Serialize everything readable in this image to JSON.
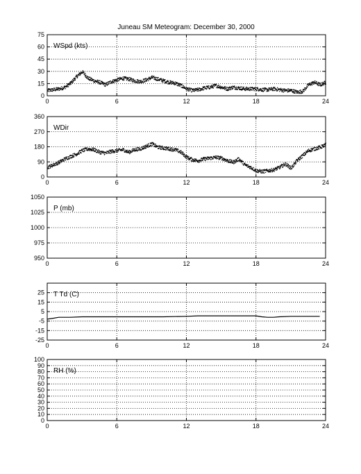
{
  "figure": {
    "title": "Juneau SM Meteogram:   December 30, 2000"
  },
  "chart_data": [
    {
      "type": "scatter",
      "label": "WSpd (kts)",
      "xlim": [
        0,
        24
      ],
      "ylim": [
        0,
        75
      ],
      "xticks": [
        0,
        6,
        12,
        18,
        24
      ],
      "yticks": [
        0,
        15,
        30,
        45,
        60,
        75
      ],
      "grid": true,
      "series": [
        {
          "values": [
            [
              0,
              7
            ],
            [
              0.5,
              8
            ],
            [
              1,
              9
            ],
            [
              1.5,
              11
            ],
            [
              2,
              16
            ],
            [
              2.5,
              24
            ],
            [
              3,
              30
            ],
            [
              3.5,
              22
            ],
            [
              4,
              19
            ],
            [
              4.5,
              17
            ],
            [
              5,
              14
            ],
            [
              5.5,
              18
            ],
            [
              6,
              20
            ],
            [
              6.5,
              22
            ],
            [
              7,
              21
            ],
            [
              7.5,
              19
            ],
            [
              8,
              18
            ],
            [
              8.5,
              20
            ],
            [
              9,
              23
            ],
            [
              9.5,
              21
            ],
            [
              10,
              19
            ],
            [
              10.5,
              17
            ],
            [
              11,
              16
            ],
            [
              11.5,
              13
            ],
            [
              12,
              9
            ],
            [
              12.5,
              7
            ],
            [
              13,
              8
            ],
            [
              13.5,
              10
            ],
            [
              14,
              11
            ],
            [
              14.5,
              13
            ],
            [
              15,
              11
            ],
            [
              15.5,
              9
            ],
            [
              16,
              11
            ],
            [
              16.5,
              10
            ],
            [
              17,
              9
            ],
            [
              17.5,
              9
            ],
            [
              18,
              9
            ],
            [
              18.5,
              8
            ],
            [
              19,
              8
            ],
            [
              19.5,
              9
            ],
            [
              20,
              8
            ],
            [
              20.5,
              7
            ],
            [
              21,
              7
            ],
            [
              21.5,
              5
            ],
            [
              22,
              6
            ],
            [
              22.5,
              14
            ],
            [
              23,
              17
            ],
            [
              23.5,
              14
            ],
            [
              24,
              17
            ]
          ]
        }
      ]
    },
    {
      "type": "scatter",
      "label": "WDir",
      "xlim": [
        0,
        24
      ],
      "ylim": [
        0,
        360
      ],
      "xticks": [
        0,
        6,
        12,
        18,
        24
      ],
      "yticks": [
        0,
        90,
        180,
        270,
        360
      ],
      "grid": true,
      "series": [
        {
          "values": [
            [
              0,
              60
            ],
            [
              0.5,
              75
            ],
            [
              1,
              90
            ],
            [
              1.5,
              110
            ],
            [
              2,
              125
            ],
            [
              2.5,
              140
            ],
            [
              3,
              160
            ],
            [
              3.5,
              170
            ],
            [
              4,
              165
            ],
            [
              4.5,
              150
            ],
            [
              5,
              145
            ],
            [
              5.5,
              155
            ],
            [
              6,
              160
            ],
            [
              6.5,
              165
            ],
            [
              7,
              150
            ],
            [
              7.5,
              165
            ],
            [
              8,
              170
            ],
            [
              8.5,
              185
            ],
            [
              9,
              200
            ],
            [
              9.5,
              180
            ],
            [
              10,
              175
            ],
            [
              10.5,
              170
            ],
            [
              11,
              165
            ],
            [
              11.5,
              150
            ],
            [
              12,
              120
            ],
            [
              12.5,
              105
            ],
            [
              13,
              100
            ],
            [
              13.5,
              110
            ],
            [
              14,
              115
            ],
            [
              14.5,
              120
            ],
            [
              15,
              115
            ],
            [
              15.5,
              100
            ],
            [
              16,
              90
            ],
            [
              16.5,
              110
            ],
            [
              17,
              75
            ],
            [
              17.5,
              60
            ],
            [
              18,
              40
            ],
            [
              18.5,
              35
            ],
            [
              19,
              40
            ],
            [
              19.5,
              45
            ],
            [
              20,
              60
            ],
            [
              20.5,
              80
            ],
            [
              21,
              55
            ],
            [
              21.5,
              100
            ],
            [
              22,
              130
            ],
            [
              22.5,
              160
            ],
            [
              23,
              170
            ],
            [
              23.5,
              180
            ],
            [
              24,
              195
            ]
          ]
        }
      ]
    },
    {
      "type": "line",
      "label": "P (mb)",
      "xlim": [
        0,
        24
      ],
      "ylim": [
        950,
        1050
      ],
      "xticks": [
        0,
        6,
        12,
        18,
        24
      ],
      "yticks": [
        950,
        975,
        1000,
        1025,
        1050
      ],
      "grid": true,
      "series": []
    },
    {
      "type": "line",
      "label": "T Td (C)",
      "xlim": [
        0,
        24
      ],
      "ylim": [
        -25,
        35
      ],
      "xticks": [
        0,
        6,
        12,
        18,
        24
      ],
      "yticks": [
        -25,
        -15,
        -5,
        5,
        15,
        25
      ],
      "grid": true,
      "series": [
        {
          "values": [
            [
              0,
              -3
            ],
            [
              0.5,
              -2
            ],
            [
              1,
              -1
            ],
            [
              2,
              -1
            ],
            [
              3,
              -0.5
            ],
            [
              4,
              -0.5
            ],
            [
              6,
              -0.5
            ],
            [
              8,
              -0.5
            ],
            [
              10,
              -0.5
            ],
            [
              12,
              0
            ],
            [
              13,
              0.5
            ],
            [
              14,
              0.5
            ],
            [
              16,
              0.5
            ],
            [
              17,
              0.5
            ],
            [
              18,
              0.5
            ],
            [
              18.5,
              -0.5
            ],
            [
              19,
              -1
            ],
            [
              19.5,
              -1
            ],
            [
              20,
              -0.5
            ],
            [
              21,
              0
            ],
            [
              22,
              0
            ],
            [
              23,
              0
            ],
            [
              23.5,
              0
            ]
          ]
        }
      ]
    },
    {
      "type": "line",
      "label": "RH (%)",
      "xlim": [
        0,
        24
      ],
      "ylim": [
        0,
        100
      ],
      "xticks": [
        0,
        6,
        12,
        18,
        24
      ],
      "yticks": [
        0,
        10,
        20,
        30,
        40,
        50,
        60,
        70,
        80,
        90,
        100
      ],
      "grid": true,
      "series": []
    }
  ]
}
